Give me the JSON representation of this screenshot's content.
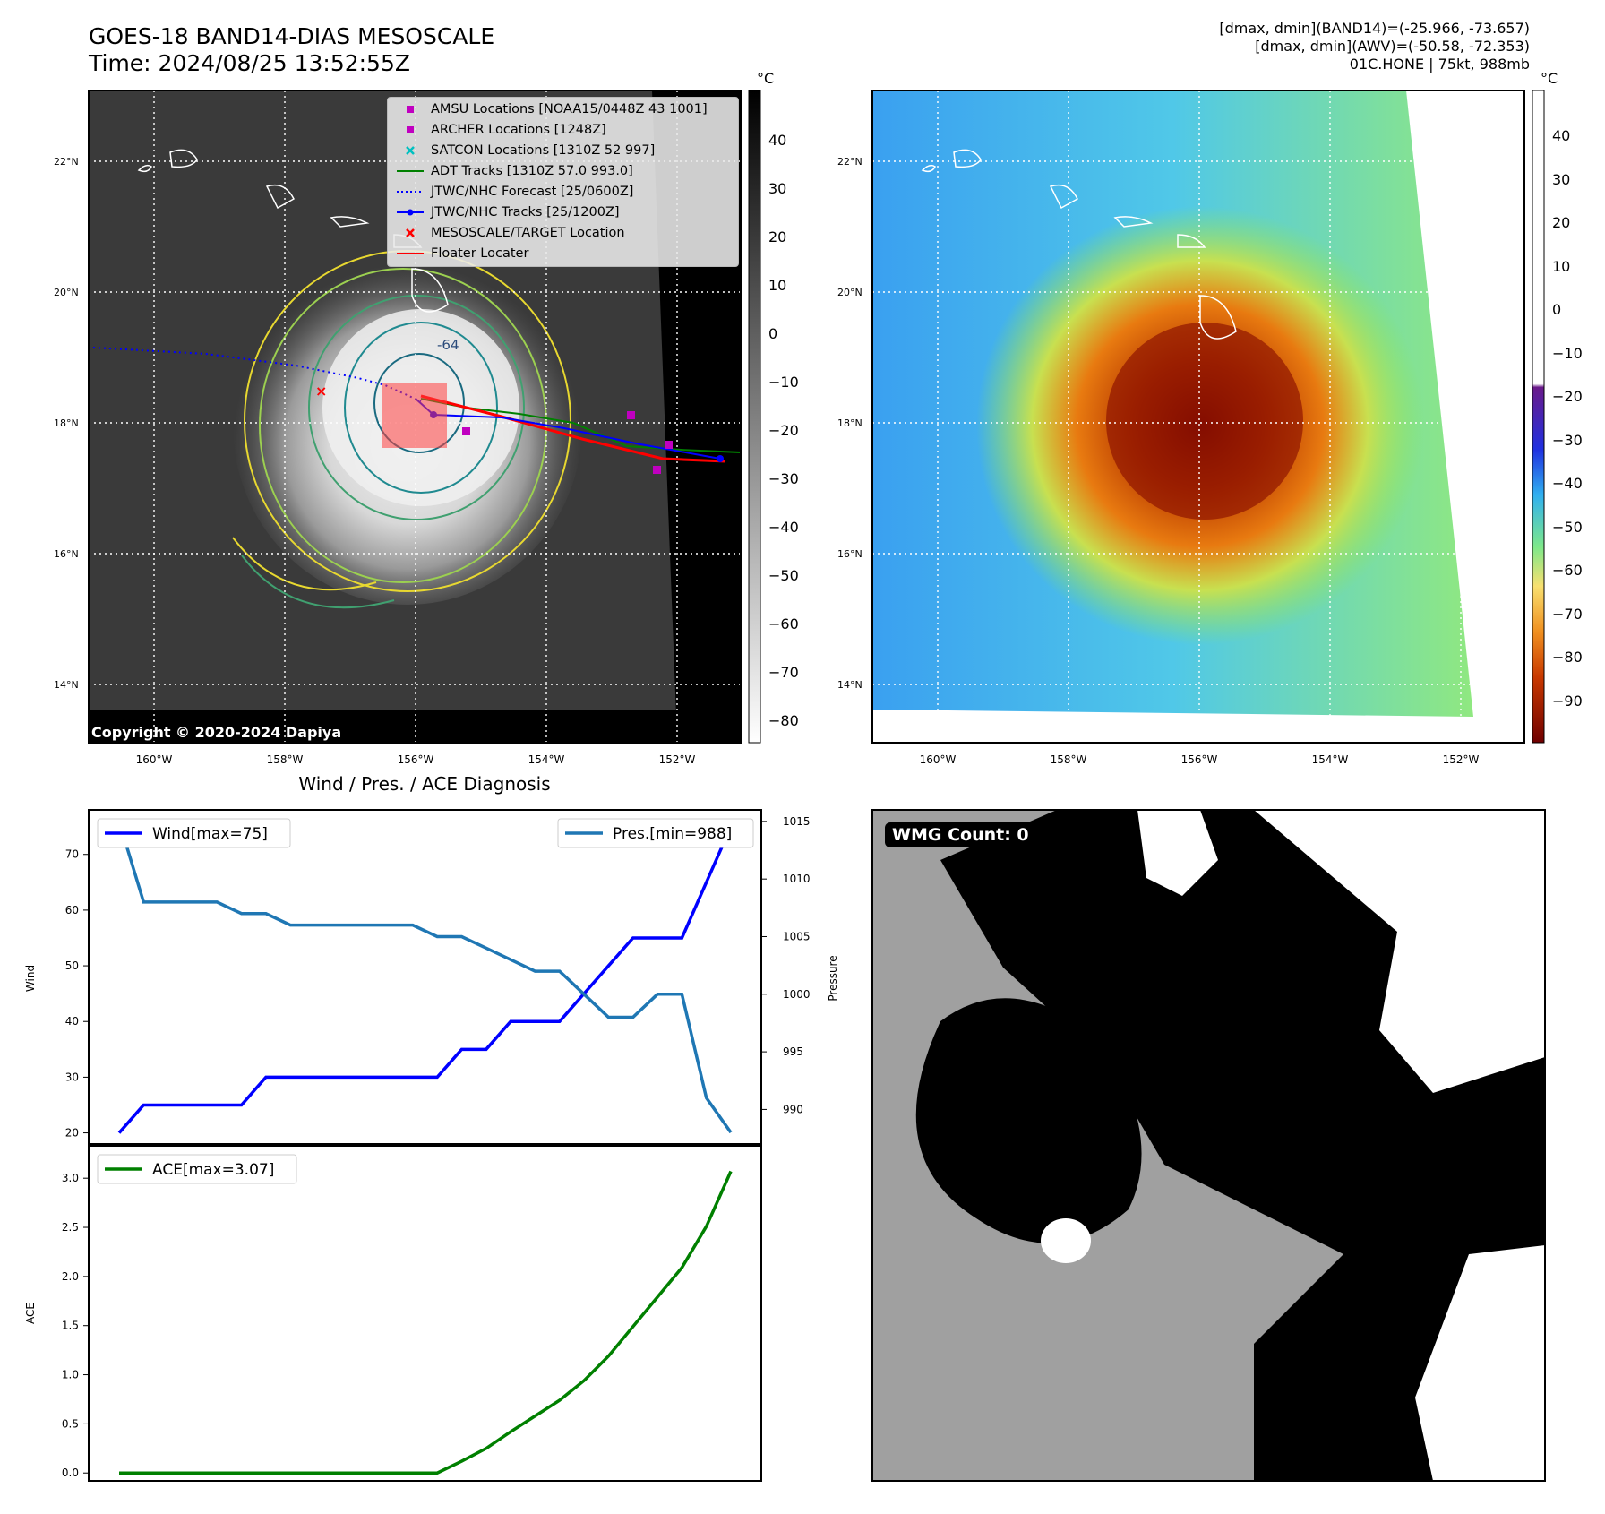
{
  "header": {
    "title_line1": "GOES-18 BAND14-DIAS MESOSCALE",
    "title_line2": "Time: 2024/08/25 13:52:55Z",
    "stats_line1": "[dmax, dmin](BAND14)=(-25.966, -73.657)",
    "stats_line2": "[dmax, dmin](AWV)=(-50.58, -72.353)",
    "stats_line3": "01C.HONE | 75kt, 988mb"
  },
  "map_panels": {
    "lat_labels": [
      "22°N",
      "20°N",
      "18°N",
      "16°N",
      "14°N"
    ],
    "lon_labels": [
      "160°W",
      "158°W",
      "156°W",
      "154°W",
      "152°W"
    ],
    "copyright": "Copyright © 2020-2024 Dapiya",
    "contour_label": "-64",
    "left_colorbar": {
      "unit": "°C",
      "ticks": [
        "40",
        "30",
        "20",
        "10",
        "0",
        "−10",
        "−20",
        "−30",
        "−40",
        "−50",
        "−60",
        "−70",
        "−80"
      ]
    },
    "right_colorbar": {
      "unit": "°C",
      "ticks": [
        "40",
        "30",
        "20",
        "10",
        "0",
        "−10",
        "−20",
        "−30",
        "−40",
        "−50",
        "−60",
        "−70",
        "−80",
        "−90"
      ]
    }
  },
  "legend": {
    "items": [
      {
        "label": "AMSU Locations [NOAA15/0448Z 43 1001]",
        "symbol": "square",
        "color": "#c000c0"
      },
      {
        "label": "ARCHER Locations [1248Z]",
        "symbol": "square",
        "color": "#c000c0"
      },
      {
        "label": "SATCON Locations [1310Z 52 997]",
        "symbol": "x",
        "color": "#00c0c0"
      },
      {
        "label": "ADT Tracks [1310Z 57.0 993.0]",
        "symbol": "line",
        "color": "#008000"
      },
      {
        "label": "JTWC/NHC Forecast [25/0600Z]",
        "symbol": "dotted",
        "color": "#0000ff"
      },
      {
        "label": "JTWC/NHC Tracks [25/1200Z]",
        "symbol": "line-dot",
        "color": "#0000ff"
      },
      {
        "label": "MESOSCALE/TARGET Location",
        "symbol": "x",
        "color": "#ff0000"
      },
      {
        "label": "Floater Locater",
        "symbol": "line",
        "color": "#ff0000"
      }
    ]
  },
  "chart_data": [
    {
      "type": "line",
      "title": "Wind / Pres. / ACE Diagnosis",
      "ylabel": "Wind",
      "ylabel_right": "Pressure",
      "ylim": [
        18,
        78
      ],
      "ylim_right": [
        987,
        1016
      ],
      "yticks": [
        "70",
        "60",
        "50",
        "40",
        "30",
        "20"
      ],
      "yticks_right": [
        "1015",
        "1010",
        "1005",
        "1000",
        "995",
        "990"
      ],
      "x": [
        0,
        1,
        2,
        3,
        4,
        5,
        6,
        7,
        8,
        9,
        10,
        11,
        12,
        13,
        14,
        15,
        16,
        17,
        18,
        19,
        20,
        21,
        22,
        23,
        24,
        25
      ],
      "series": [
        {
          "name": "Wind[max=75]",
          "color": "#0000ff",
          "values": [
            20,
            25,
            25,
            25,
            25,
            25,
            30,
            30,
            30,
            30,
            30,
            30,
            30,
            30,
            35,
            35,
            40,
            40,
            40,
            45,
            50,
            55,
            55,
            55,
            65,
            75
          ]
        },
        {
          "name": "Pres.[min=988]",
          "color": "#1f77b4",
          "axis": "right",
          "values": [
            1015,
            1008,
            1008,
            1008,
            1008,
            1007,
            1007,
            1006,
            1006,
            1006,
            1006,
            1006,
            1006,
            1005,
            1005,
            1004,
            1003,
            1002,
            1002,
            1000,
            998,
            998,
            1000,
            1000,
            991,
            988
          ]
        }
      ]
    },
    {
      "type": "line",
      "ylabel": "ACE",
      "ylim": [
        -0.08,
        3.33
      ],
      "yticks": [
        "3.0",
        "2.5",
        "2.0",
        "1.5",
        "1.0",
        "0.5",
        "0.0"
      ],
      "x": [
        0,
        1,
        2,
        3,
        4,
        5,
        6,
        7,
        8,
        9,
        10,
        11,
        12,
        13,
        14,
        15,
        16,
        17,
        18,
        19,
        20,
        21,
        22,
        23,
        24,
        25
      ],
      "series": [
        {
          "name": "ACE[max=3.07]",
          "color": "#008000",
          "values": [
            0,
            0,
            0,
            0,
            0,
            0,
            0,
            0,
            0,
            0,
            0,
            0,
            0,
            0,
            0.12,
            0.25,
            0.42,
            0.58,
            0.74,
            0.94,
            1.19,
            1.49,
            1.79,
            2.09,
            2.51,
            3.07
          ]
        }
      ]
    }
  ],
  "wmg_panel": {
    "label": "WMG Count: 0"
  }
}
